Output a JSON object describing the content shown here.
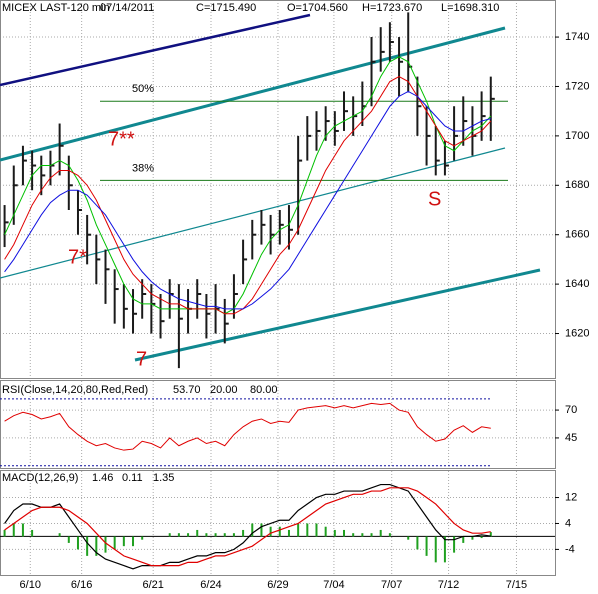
{
  "chart_data": [
    {
      "type": "ohlc",
      "header": [
        "MICEX LAST-120 min",
        "07/14/2011",
        "C=1715.490",
        "O=1704.560",
        "H=1723.670",
        "L=1698.310"
      ],
      "header_colors": [
        "#000000",
        "#000000",
        "#00a000",
        "#00a000",
        "#000000",
        "#000000"
      ],
      "x": [
        0,
        1,
        2,
        3,
        4,
        5,
        6,
        7,
        8,
        9,
        10,
        11,
        12,
        13,
        14,
        15,
        16,
        17,
        18,
        19,
        20,
        21,
        22,
        23,
        24,
        25,
        26,
        27,
        28,
        29,
        30,
        31,
        32,
        33,
        34,
        35,
        36,
        37,
        38,
        39,
        40,
        41,
        42,
        43,
        44,
        45,
        46,
        47,
        48,
        49,
        50,
        51,
        52,
        53
      ],
      "high": [
        1672,
        1688,
        1696,
        1694,
        1692,
        1694,
        1705,
        1692,
        1678,
        1668,
        1660,
        1654,
        1646,
        1640,
        1638,
        1642,
        1640,
        1636,
        1642,
        1640,
        1638,
        1642,
        1636,
        1640,
        1634,
        1644,
        1658,
        1666,
        1670,
        1668,
        1670,
        1672,
        1700,
        1708,
        1710,
        1712,
        1710,
        1718,
        1716,
        1722,
        1740,
        1744,
        1746,
        1740,
        1750,
        1724,
        1712,
        1704,
        1698,
        1712,
        1716,
        1712,
        1718,
        1724
      ],
      "low": [
        1655,
        1664,
        1680,
        1678,
        1676,
        1680,
        1684,
        1670,
        1660,
        1648,
        1640,
        1632,
        1624,
        1622,
        1620,
        1626,
        1620,
        1618,
        1626,
        1606,
        1620,
        1626,
        1618,
        1620,
        1616,
        1626,
        1640,
        1650,
        1656,
        1652,
        1656,
        1654,
        1660,
        1690,
        1694,
        1698,
        1696,
        1702,
        1700,
        1704,
        1712,
        1726,
        1730,
        1716,
        1718,
        1700,
        1688,
        1684,
        1684,
        1690,
        1696,
        1692,
        1698,
        1698
      ],
      "close": [
        1665,
        1680,
        1690,
        1688,
        1684,
        1688,
        1696,
        1680,
        1670,
        1660,
        1650,
        1646,
        1638,
        1630,
        1628,
        1636,
        1632,
        1625,
        1636,
        1626,
        1630,
        1636,
        1628,
        1630,
        1624,
        1636,
        1650,
        1660,
        1664,
        1660,
        1664,
        1662,
        1690,
        1700,
        1702,
        1706,
        1702,
        1710,
        1708,
        1712,
        1730,
        1734,
        1738,
        1730,
        1728,
        1712,
        1700,
        1690,
        1688,
        1700,
        1706,
        1700,
        1708,
        1715
      ],
      "bar_color": "#1a1a1a",
      "moving_averages": [
        {
          "color": "#00c000",
          "values": [
            1660,
            1668,
            1676,
            1684,
            1688,
            1688,
            1690,
            1688,
            1682,
            1674,
            1664,
            1656,
            1648,
            1640,
            1634,
            1632,
            1632,
            1630,
            1630,
            1630,
            1630,
            1630,
            1630,
            1630,
            1628,
            1630,
            1636,
            1644,
            1652,
            1658,
            1662,
            1664,
            1672,
            1682,
            1692,
            1700,
            1704,
            1706,
            1708,
            1710,
            1716,
            1724,
            1730,
            1732,
            1730,
            1722,
            1714,
            1704,
            1696,
            1694,
            1698,
            1702,
            1704,
            1708
          ]
        },
        {
          "color": "#e00000",
          "values": [
            1650,
            1656,
            1664,
            1672,
            1678,
            1683,
            1686,
            1686,
            1684,
            1680,
            1674,
            1666,
            1658,
            1650,
            1644,
            1640,
            1636,
            1634,
            1632,
            1632,
            1630,
            1630,
            1630,
            1630,
            1628,
            1628,
            1630,
            1634,
            1640,
            1646,
            1652,
            1656,
            1662,
            1670,
            1678,
            1686,
            1692,
            1698,
            1702,
            1706,
            1710,
            1716,
            1722,
            1724,
            1722,
            1716,
            1710,
            1704,
            1698,
            1696,
            1698,
            1700,
            1702,
            1706
          ]
        },
        {
          "color": "#1010e0",
          "values": [
            1645,
            1650,
            1656,
            1662,
            1668,
            1673,
            1676,
            1678,
            1678,
            1676,
            1672,
            1668,
            1662,
            1656,
            1650,
            1645,
            1641,
            1638,
            1636,
            1634,
            1633,
            1632,
            1631,
            1631,
            1630,
            1630,
            1630,
            1632,
            1635,
            1638,
            1642,
            1646,
            1652,
            1658,
            1664,
            1670,
            1676,
            1682,
            1688,
            1694,
            1700,
            1706,
            1712,
            1716,
            1718,
            1716,
            1712,
            1708,
            1704,
            1702,
            1702,
            1704,
            1706,
            1707
          ]
        }
      ],
      "levels": [
        {
          "label": "50%",
          "value": 1714
        },
        {
          "label": "38%",
          "value": 1682
        }
      ],
      "annotations": [
        "7**",
        "7*",
        "7",
        "S"
      ],
      "xlim": [
        -0.5,
        60
      ],
      "xticks": [
        {
          "value": 2.8,
          "label": "6/10"
        },
        {
          "value": 8.4,
          "label": "6/16"
        },
        {
          "value": 16.2,
          "label": "6/21"
        },
        {
          "value": 22.5,
          "label": "6/24"
        },
        {
          "value": 29.8,
          "label": "6/29"
        },
        {
          "value": 35.9,
          "label": "7/04"
        },
        {
          "value": 42.2,
          "label": "7/07"
        },
        {
          "value": 48.4,
          "label": "7/12"
        },
        {
          "value": 55.8,
          "label": "7/15"
        }
      ],
      "ylim": [
        1602,
        1755
      ],
      "yticks": [
        1620,
        1640,
        1660,
        1680,
        1700,
        1720,
        1740
      ],
      "grid": true
    },
    {
      "type": "line",
      "title": "RSI(Close,14,20,80,Red,Red)",
      "readouts": [
        "53.70",
        "20.00",
        "80.00"
      ],
      "readout_colors": [
        "#c00000",
        "#1010c0",
        "#1010c0"
      ],
      "series": [
        {
          "color": "#e00000",
          "values": [
            60,
            65,
            68,
            66,
            62,
            64,
            67,
            55,
            48,
            42,
            38,
            40,
            36,
            34,
            35,
            42,
            40,
            36,
            45,
            38,
            42,
            45,
            40,
            42,
            38,
            48,
            55,
            60,
            62,
            58,
            60,
            59,
            70,
            72,
            73,
            74,
            72,
            74,
            72,
            74,
            76,
            75,
            76,
            70,
            68,
            55,
            48,
            42,
            44,
            52,
            56,
            50,
            55,
            53.7
          ]
        }
      ],
      "levels": [
        80,
        20
      ],
      "ylim": [
        18,
        97
      ],
      "yticks": [
        45,
        70
      ]
    },
    {
      "type": "macd",
      "title": "MACD(12,26,9)",
      "readouts": [
        "1.46",
        "0.11",
        "1.35"
      ],
      "readout_colors": [
        "#c00000",
        "#000000",
        "#008000"
      ],
      "series": [
        {
          "color": "#000000",
          "values": [
            4,
            8,
            10,
            10,
            9,
            9,
            10,
            6,
            2,
            -2,
            -5,
            -7,
            -8,
            -9,
            -10,
            -9,
            -9,
            -9,
            -8,
            -8,
            -7,
            -6,
            -6,
            -5,
            -5,
            -4,
            -2,
            1,
            3,
            4,
            5,
            5,
            8,
            10,
            12,
            13,
            13,
            14,
            14,
            14,
            15,
            16,
            16,
            15,
            14,
            10,
            6,
            2,
            -1,
            -1,
            0,
            0,
            0.5,
            0.11
          ]
        },
        {
          "color": "#e00000",
          "values": [
            2,
            4,
            6,
            8,
            9,
            9,
            9,
            8,
            6,
            4,
            1,
            -2,
            -4,
            -6,
            -7,
            -8,
            -9,
            -9,
            -9,
            -9,
            -8,
            -8,
            -7,
            -6,
            -6,
            -5,
            -4,
            -3,
            -1,
            1,
            2,
            3,
            4,
            6,
            8,
            10,
            11,
            12,
            13,
            13,
            14,
            14,
            15,
            15,
            15,
            14,
            12,
            10,
            7,
            4,
            2,
            1,
            1,
            1.46
          ]
        }
      ],
      "histogram": {
        "color": "#20a020",
        "values": [
          2,
          4,
          4,
          2,
          0,
          0,
          1,
          -2,
          -4,
          -6,
          -6,
          -5,
          -4,
          -3,
          -3,
          -1,
          0,
          0,
          1,
          1,
          1,
          2,
          1,
          1,
          1,
          1,
          2,
          4,
          4,
          3,
          3,
          2,
          4,
          4,
          4,
          3,
          2,
          2,
          1,
          1,
          1,
          2,
          1,
          0,
          -1,
          -4,
          -6,
          -8,
          -8,
          -5,
          -2,
          -1,
          -0.5,
          1.35
        ]
      },
      "zero_line": true,
      "ylim": [
        -11.9,
        20.5
      ],
      "yticks": [
        -4,
        4,
        12
      ]
    }
  ]
}
